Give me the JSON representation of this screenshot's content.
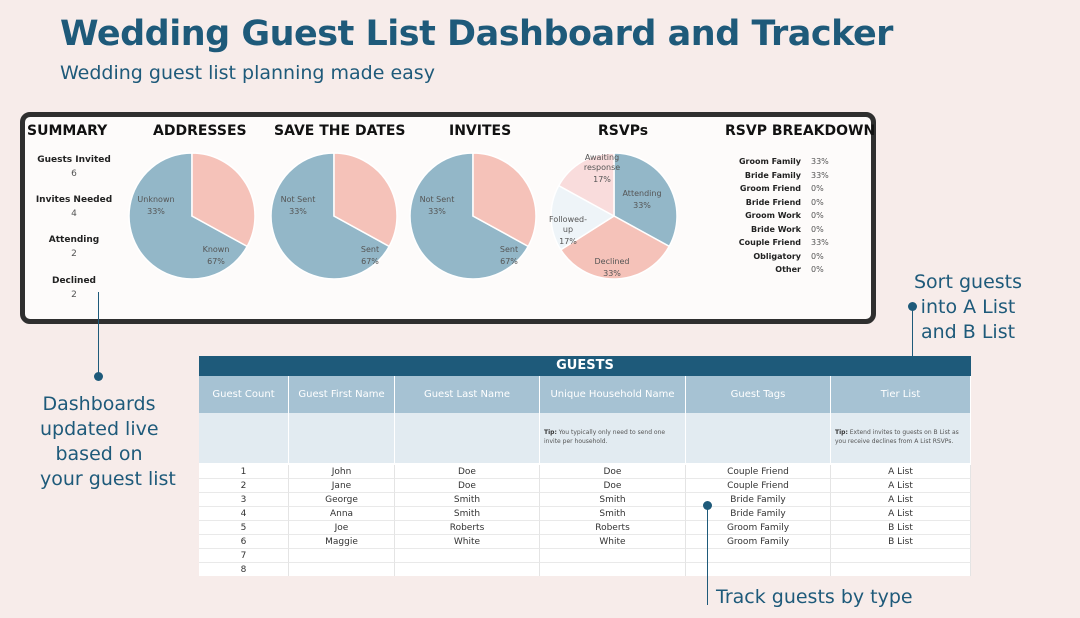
{
  "header": {
    "title": "Wedding Guest List Dashboard and Tracker",
    "subtitle": "Wedding guest list planning made easy"
  },
  "dashboard": {
    "summary": {
      "heading": "SUMMARY",
      "items": [
        {
          "label": "Guests Invited",
          "value": "6"
        },
        {
          "label": "Invites Needed",
          "value": "4"
        },
        {
          "label": "Attending",
          "value": "2"
        },
        {
          "label": "Declined",
          "value": "2"
        }
      ]
    },
    "breakdown": {
      "heading": "RSVP BREAKDOWN",
      "rows": [
        {
          "name": "Groom Family",
          "value": "33%"
        },
        {
          "name": "Bride Family",
          "value": "33%"
        },
        {
          "name": "Groom Friend",
          "value": "0%"
        },
        {
          "name": "Bride Friend",
          "value": "0%"
        },
        {
          "name": "Groom Work",
          "value": "0%"
        },
        {
          "name": "Bride Work",
          "value": "0%"
        },
        {
          "name": "Couple Friend",
          "value": "33%"
        },
        {
          "name": "Obligatory",
          "value": "0%"
        },
        {
          "name": "Other",
          "value": "0%"
        }
      ]
    },
    "colors": {
      "blue": "#93b7c8",
      "pink": "#f5c2b9",
      "light": "#eef4f8",
      "rose": "#f9dcdc"
    }
  },
  "chart_data": [
    {
      "type": "pie",
      "title": "ADDRESSES",
      "slices": [
        {
          "label": "Known",
          "pct": "67%",
          "value": 67,
          "color": "#93b7c8"
        },
        {
          "label": "Unknown",
          "pct": "33%",
          "value": 33,
          "color": "#f5c2b9"
        }
      ]
    },
    {
      "type": "pie",
      "title": "SAVE THE DATES",
      "slices": [
        {
          "label": "Sent",
          "pct": "67%",
          "value": 67,
          "color": "#93b7c8"
        },
        {
          "label": "Not Sent",
          "pct": "33%",
          "value": 33,
          "color": "#f5c2b9"
        }
      ]
    },
    {
      "type": "pie",
      "title": "INVITES",
      "slices": [
        {
          "label": "Sent",
          "pct": "67%",
          "value": 67,
          "color": "#93b7c8"
        },
        {
          "label": "Not Sent",
          "pct": "33%",
          "value": 33,
          "color": "#f5c2b9"
        }
      ]
    },
    {
      "type": "pie",
      "title": "RSVPs",
      "slices": [
        {
          "label": "Attending",
          "pct": "33%",
          "value": 33,
          "color": "#93b7c8"
        },
        {
          "label": "Declined",
          "pct": "33%",
          "value": 33,
          "color": "#f5c2b9"
        },
        {
          "label": "Followed-up",
          "pct": "17%",
          "value": 17,
          "color": "#eef4f8"
        },
        {
          "label": "Awaiting response",
          "pct": "17%",
          "value": 17,
          "color": "#f9dcdc"
        }
      ]
    }
  ],
  "callouts": {
    "left": [
      "Dashboards",
      "updated live",
      "based on",
      "your guest list"
    ],
    "right": [
      "Sort guests",
      "into A List",
      "and B List"
    ],
    "bottom": "Track guests by type"
  },
  "sheet": {
    "title": "GUESTS",
    "columns": [
      "Guest Count",
      "Guest First Name",
      "Guest Last Name",
      "Unique Household Name",
      "Guest Tags",
      "Tier List"
    ],
    "tips": [
      "",
      "",
      "",
      "You typically only need to send one invite per household.",
      "",
      "Extend invites to guests on B List as you receive declines from A List RSVPs."
    ],
    "tip_label": "Tip:",
    "rows": [
      [
        "1",
        "John",
        "Doe",
        "Doe",
        "Couple Friend",
        "A List"
      ],
      [
        "2",
        "Jane",
        "Doe",
        "Doe",
        "Couple Friend",
        "A List"
      ],
      [
        "3",
        "George",
        "Smith",
        "Smith",
        "Bride Family",
        "A List"
      ],
      [
        "4",
        "Anna",
        "Smith",
        "Smith",
        "Bride Family",
        "A List"
      ],
      [
        "5",
        "Joe",
        "Roberts",
        "Roberts",
        "Groom Family",
        "B List"
      ],
      [
        "6",
        "Maggie",
        "White",
        "White",
        "Groom Family",
        "B List"
      ],
      [
        "7",
        "",
        "",
        "",
        "",
        ""
      ],
      [
        "8",
        "",
        "",
        "",
        "",
        ""
      ]
    ]
  }
}
